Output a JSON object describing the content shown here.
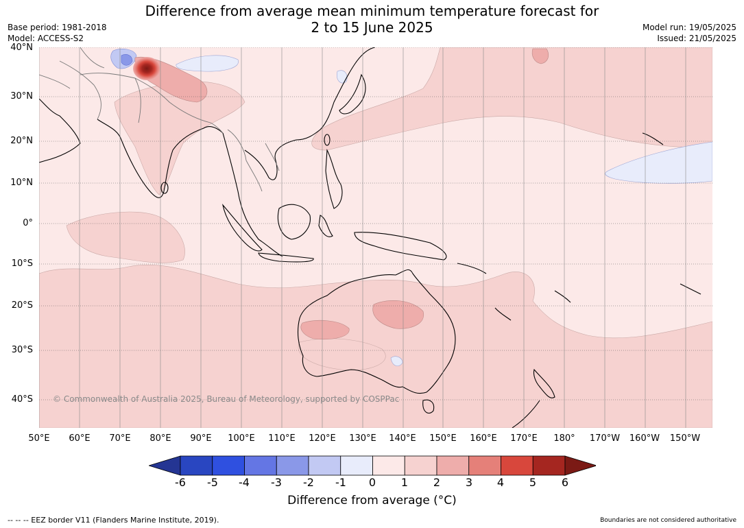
{
  "header": {
    "title_line1": "Difference from average mean minimum temperature forecast for",
    "title_line2": "2 to 15 June 2025",
    "base_period": "Base period: 1981-2018",
    "model": "Model: ACCESS-S2",
    "model_run": "Model run: 19/05/2025",
    "issued": "Issued: 21/05/2025"
  },
  "map": {
    "watermark": "© Commonwealth of Australia 2025, Bureau of Meteorology, supported by COSPPac",
    "lat_labels": [
      "40°N",
      "30°N",
      "20°N",
      "10°N",
      "0°",
      "10°S",
      "20°S",
      "30°S",
      "40°S"
    ],
    "lon_labels": [
      "50°E",
      "60°E",
      "70°E",
      "80°E",
      "90°E",
      "100°E",
      "110°E",
      "120°E",
      "130°E",
      "140°E",
      "150°E",
      "160°E",
      "170°E",
      "180°",
      "170°W",
      "160°W",
      "150°W"
    ],
    "colors": {
      "bg_0_1": "#fce9e8",
      "c_1_2": "#f6d2d0",
      "c_2_3": "#eeadab",
      "c_3_4": "#e58079",
      "c_4_5": "#d8473c",
      "c_5_6": "#a52620",
      "c_gt6": "#7b1a15",
      "c_m1_0": "#e8ecfb",
      "c_m2_m1": "#c2c9f3",
      "c_m3_m2": "#8a98e8"
    }
  },
  "colorbar": {
    "ticks": [
      "-6",
      "-5",
      "-4",
      "-3",
      "-2",
      "-1",
      "0",
      "1",
      "2",
      "3",
      "4",
      "5",
      "6"
    ],
    "colors": [
      "#243593",
      "#2946c1",
      "#2f50e0",
      "#6476e4",
      "#8a98e8",
      "#c2c9f3",
      "#e8ecfb",
      "#fce9e8",
      "#f6d2d0",
      "#eeadab",
      "#e58079",
      "#d8473c",
      "#a52620",
      "#7b1a15"
    ],
    "label": "Difference from average (°C)"
  },
  "footer": {
    "eez_legend": "-- -- -- EEZ border V11 (Flanders Marine Institute, 2019).",
    "boundaries_note": "Boundaries are not considered authoritative"
  }
}
